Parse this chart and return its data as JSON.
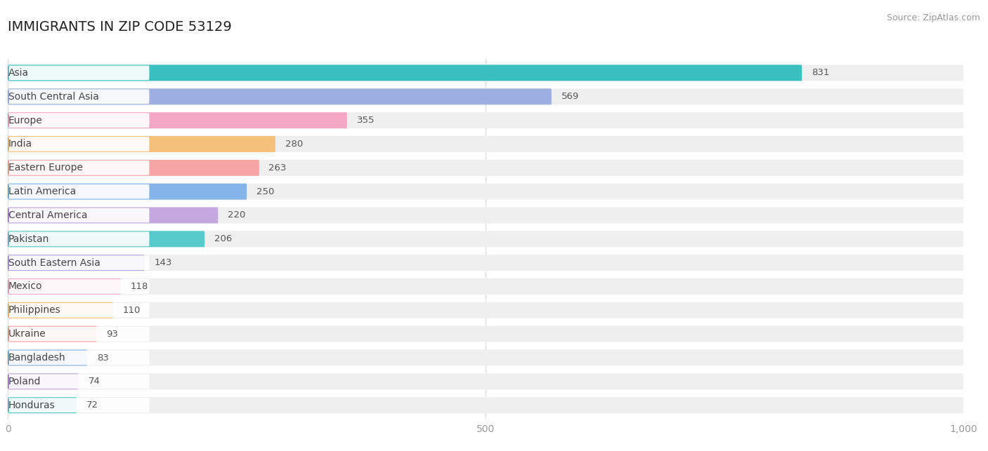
{
  "title": "IMMIGRANTS IN ZIP CODE 53129",
  "source": "Source: ZipAtlas.com",
  "categories": [
    "Asia",
    "South Central Asia",
    "Europe",
    "India",
    "Eastern Europe",
    "Latin America",
    "Central America",
    "Pakistan",
    "South Eastern Asia",
    "Mexico",
    "Philippines",
    "Ukraine",
    "Bangladesh",
    "Poland",
    "Honduras"
  ],
  "values": [
    831,
    569,
    355,
    280,
    263,
    250,
    220,
    206,
    143,
    118,
    110,
    93,
    83,
    74,
    72
  ],
  "bar_colors": [
    "#3bbfbf",
    "#9daee0",
    "#f5a8c5",
    "#f5c07a",
    "#f5a5a5",
    "#85b5e8",
    "#c5a8e0",
    "#55cbcb",
    "#aeaadf",
    "#f5a8c5",
    "#f5c07a",
    "#f5a5a5",
    "#85b5e8",
    "#c5a8e0",
    "#55cbcb"
  ],
  "dot_colors": [
    "#2aafaf",
    "#7a90d0",
    "#f07098",
    "#f09820",
    "#f07070",
    "#4888d0",
    "#9060c0",
    "#28a8a8",
    "#8870c0",
    "#f07098",
    "#f09820",
    "#f07070",
    "#4888d0",
    "#9060c0",
    "#28a8a8"
  ],
  "xlim": [
    0,
    1000
  ],
  "xticks": [
    0,
    500,
    1000
  ],
  "xtick_labels": [
    "0",
    "500",
    "1,000"
  ],
  "background_color": "#ffffff",
  "bar_bg_color": "#efefef",
  "title_fontsize": 14,
  "label_fontsize": 10,
  "value_fontsize": 9.5,
  "source_fontsize": 9
}
